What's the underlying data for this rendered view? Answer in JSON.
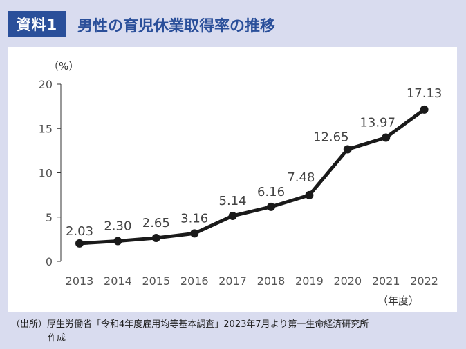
{
  "header": {
    "badge": "資料1",
    "title": "男性の育児休業取得率の推移"
  },
  "source": {
    "line1": "（出所）厚生労働省「令和4年度雇用均等基本調査」2023年7月より第一生命経済研究所",
    "line2": "作成"
  },
  "colors": {
    "background": "#d9dcef",
    "accent": "#2a4f9a",
    "line": "#1a1a1a"
  },
  "chart_data": {
    "type": "line",
    "title": "男性の育児休業取得率の推移",
    "ylabel": "（%）",
    "xlabel": "（年度）",
    "ylim": [
      0,
      20
    ],
    "yticks": [
      0,
      5,
      10,
      15,
      20
    ],
    "x": [
      2013,
      2014,
      2015,
      2016,
      2017,
      2018,
      2019,
      2020,
      2021,
      2022
    ],
    "series": [
      {
        "values": [
          2.03,
          2.3,
          2.65,
          3.16,
          5.14,
          6.16,
          7.48,
          12.65,
          13.97,
          17.13
        ],
        "labels": [
          "2.03",
          "2.30",
          "2.65",
          "3.16",
          "5.14",
          "6.16",
          "7.48",
          "12.65",
          "13.97",
          "17.13"
        ]
      }
    ],
    "grid": false,
    "legend": "none"
  }
}
